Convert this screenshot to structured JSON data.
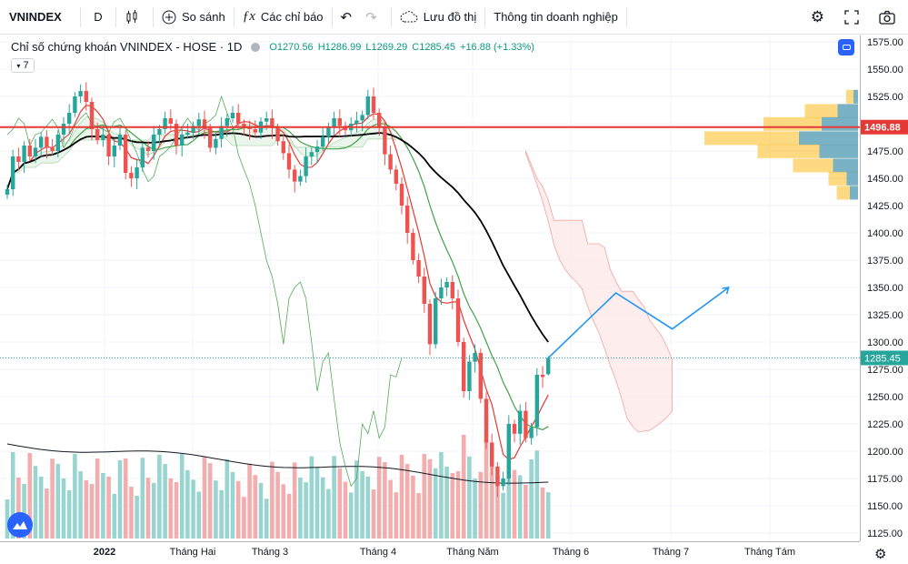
{
  "toolbar": {
    "symbol": "VNINDEX",
    "interval": "D",
    "compare_label": "So sánh",
    "indicators_label": "Các chỉ báo",
    "save_label": "Lưu đồ thị",
    "company_info_label": "Thông tin doanh nghiệp"
  },
  "legend": {
    "title": "Chỉ số chứng khoán VNINDEX - HOSE · 1D",
    "open": "O1270.56",
    "high": "H1286.99",
    "low": "L1269.29",
    "close": "C1285.45",
    "change": "+16.88 (+1.33%)",
    "indicator_count": "7"
  },
  "colors": {
    "up": "#26a69a",
    "down": "#ef5350",
    "ma_fast": "#e53935",
    "ma_mid": "#43a047",
    "ma_slow": "#000000",
    "projection": "#2196f3",
    "resistance": "#e53935"
  },
  "chart_data": {
    "type": "candlestick",
    "y_axis": {
      "ticks": [
        1575,
        1550,
        1525,
        1500,
        1475,
        1450,
        1425,
        1400,
        1375,
        1350,
        1325,
        1300,
        1275,
        1250,
        1225,
        1200,
        1175,
        1150,
        1125
      ],
      "tick_labels": [
        "1575.00",
        "1550.00",
        "1525.00",
        "1500.00",
        "1475.00",
        "1450.00",
        "1425.00",
        "1400.00",
        "1375.00",
        "1350.00",
        "1325.00",
        "1300.00",
        "1275.00",
        "1250.00",
        "1225.00",
        "1200.00",
        "1175.00",
        "1150.00",
        "1125.00"
      ],
      "range": [
        1115,
        1590
      ]
    },
    "x_axis": {
      "labels": [
        "2022",
        "Tháng Hai",
        "Tháng 3",
        "Tháng 4",
        "Tháng Năm",
        "Tháng 6",
        "Tháng 7",
        "Tháng Tám"
      ]
    },
    "last_price": 1285.45,
    "last_price_label": "1285.45",
    "resistance_level": 1496.88,
    "resistance_label": "1496.88",
    "closes": [
      1440,
      1470,
      1465,
      1480,
      1470,
      1478,
      1488,
      1478,
      1475,
      1490,
      1500,
      1510,
      1525,
      1530,
      1520,
      1495,
      1485,
      1490,
      1470,
      1480,
      1490,
      1455,
      1450,
      1460,
      1478,
      1475,
      1490,
      1495,
      1505,
      1500,
      1480,
      1490,
      1492,
      1498,
      1504,
      1496,
      1478,
      1486,
      1498,
      1505,
      1510,
      1500,
      1497,
      1495,
      1492,
      1502,
      1505,
      1496,
      1484,
      1473,
      1458,
      1447,
      1452,
      1470,
      1474,
      1479,
      1488,
      1497,
      1505,
      1498,
      1494,
      1500,
      1503,
      1508,
      1525,
      1510,
      1497,
      1472,
      1458,
      1445,
      1425,
      1400,
      1375,
      1360,
      1335,
      1298,
      1340,
      1350,
      1355,
      1340,
      1300,
      1255,
      1282,
      1290,
      1248,
      1208,
      1186,
      1168,
      1175,
      1225,
      1216,
      1237,
      1212,
      1222,
      1270,
      1268,
      1285.45
    ],
    "volume_ma_last": 1165,
    "projection": [
      [
        1285.45,
        0
      ],
      [
        1345,
        12
      ],
      [
        1312,
        22
      ],
      [
        1350,
        32
      ]
    ]
  }
}
